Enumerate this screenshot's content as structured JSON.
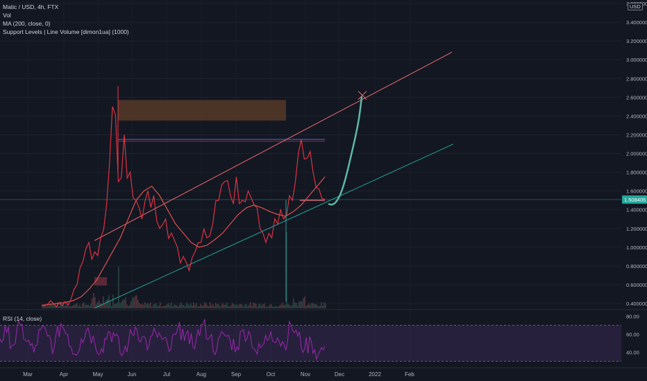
{
  "legend": {
    "title": "Matic / USD, 4h, FTX",
    "vol": "Vol",
    "ma": "MA (200, close, 0)",
    "support": "Support Levels | Line Volume [dimon1ua] (1000)"
  },
  "currency": "USD",
  "rsi_label": "RSI (14, close)",
  "current_price_label": "1.508405",
  "colors": {
    "background": "#131722",
    "price_line": "#f23645",
    "ma_line": "#e0524e",
    "upper_trend": "#f06b6b",
    "lower_trend": "#26a69a",
    "projection": "#5fb8a8",
    "rsi_line": "#9c27b0",
    "rsi_fill": "#3b2a55",
    "resistance_box": "#7a4a2a",
    "volume": "#4a3b40"
  },
  "chart_data": [
    {
      "type": "line",
      "name": "price",
      "x_labels": [
        "Mar",
        "Apr",
        "May",
        "Jun",
        "Jul",
        "Aug",
        "Sep",
        "Oct",
        "Nov",
        "Dec",
        "2022",
        "Feb"
      ],
      "y_ticks": [
        "3.600000",
        "3.400000",
        "3.200000",
        "3.000000",
        "2.800000",
        "2.600000",
        "2.400000",
        "2.200000",
        "2.000000",
        "1.800000",
        "1.600000",
        "1.400000",
        "1.200000",
        "1.000000",
        "0.800000",
        "0.600000",
        "0.400000"
      ],
      "ylim": [
        0.4,
        3.6
      ],
      "series": [
        {
          "values": [
            0.38,
            0.39,
            0.4,
            0.41,
            0.42,
            0.45,
            0.6,
            0.85,
            1.05,
            0.95,
            1.1,
            1.45,
            2.5,
            1.7,
            2.2,
            1.8,
            1.5,
            1.3,
            1.6,
            1.55,
            1.2,
            1.3,
            1.15,
            1.0,
            0.9,
            0.75,
            0.95,
            1.05,
            1.1,
            1.25,
            1.5,
            1.7,
            1.55,
            1.75,
            1.5,
            1.6,
            1.45,
            1.2,
            1.05,
            1.1,
            1.25,
            1.3,
            1.55,
            1.7,
            2.15,
            1.95,
            1.8,
            1.62,
            1.51
          ]
        },
        {
          "values": [
            0.38,
            0.39,
            0.4,
            0.41,
            0.43,
            0.47,
            0.55,
            0.65,
            0.8,
            0.95,
            1.1,
            1.3,
            1.5,
            1.6,
            1.65,
            1.55,
            1.4,
            1.25,
            1.15,
            1.05,
            1.0,
            1.02,
            1.08,
            1.15,
            1.25,
            1.35,
            1.42,
            1.45,
            1.42,
            1.38,
            1.35,
            1.33,
            1.38,
            1.45,
            1.55,
            1.65,
            1.75
          ]
        }
      ]
    },
    {
      "type": "line",
      "name": "rsi",
      "y_ticks": [
        "80.00",
        "60.00",
        "40.00"
      ],
      "ylim": [
        25,
        85
      ],
      "levels": [
        70,
        30
      ],
      "values": [
        55,
        62,
        48,
        70,
        52,
        40,
        65,
        58,
        45,
        72,
        60,
        38,
        55,
        67,
        50,
        44,
        63,
        58,
        36,
        52,
        68,
        57,
        47,
        62,
        54,
        41,
        60,
        66,
        49,
        55,
        71,
        57,
        42,
        61,
        53,
        46,
        65,
        59,
        38,
        50,
        63,
        56,
        48,
        70,
        58,
        44,
        52,
        37,
        47
      ]
    }
  ]
}
